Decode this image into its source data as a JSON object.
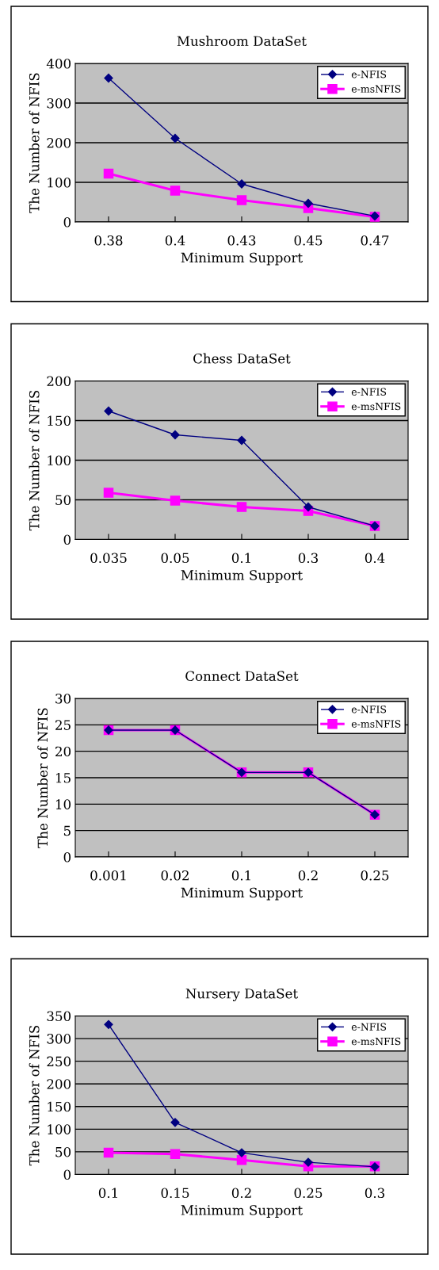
{
  "chart_data": [
    {
      "type": "line",
      "title": "Mushroom DataSet",
      "xlabel": "Minimum Support",
      "ylabel": "The Number of NFIS",
      "categories": [
        "0.38",
        "0.4",
        "0.43",
        "0.45",
        "0.47"
      ],
      "ylim": [
        0,
        400
      ],
      "yticks": [
        0,
        100,
        200,
        300,
        400
      ],
      "grid": "y",
      "legend": "top right",
      "series": [
        {
          "name": "e-NFIS",
          "color": "#000080",
          "marker": "diamond",
          "values": [
            363,
            211,
            96,
            47,
            15
          ]
        },
        {
          "name": "e-msNFIS",
          "color": "#ff00ff",
          "marker": "square",
          "values": [
            122,
            79,
            55,
            35,
            13
          ]
        }
      ]
    },
    {
      "type": "line",
      "title": "Chess DataSet",
      "xlabel": "Minimum Support",
      "ylabel": "The Number of NFIS",
      "categories": [
        "0.035",
        "0.05",
        "0.1",
        "0.3",
        "0.4"
      ],
      "ylim": [
        0,
        200
      ],
      "yticks": [
        0,
        50,
        100,
        150,
        200
      ],
      "grid": "y",
      "legend": "top right",
      "series": [
        {
          "name": "e-NFIS",
          "color": "#000080",
          "marker": "diamond",
          "values": [
            162,
            132,
            125,
            41,
            17
          ]
        },
        {
          "name": "e-msNFIS",
          "color": "#ff00ff",
          "marker": "square",
          "values": [
            59,
            49,
            41,
            36,
            17
          ]
        }
      ]
    },
    {
      "type": "line",
      "title": "Connect DataSet",
      "xlabel": "Minimum Support",
      "ylabel": "The Number of NFIS",
      "categories": [
        "0.001",
        "0.02",
        "0.1",
        "0.2",
        "0.25"
      ],
      "ylim": [
        0,
        30
      ],
      "yticks": [
        0,
        5,
        10,
        15,
        20,
        25,
        30
      ],
      "grid": "y",
      "legend": "top right",
      "series": [
        {
          "name": "e-NFIS",
          "color": "#000080",
          "marker": "diamond",
          "values": [
            24,
            24,
            16,
            16,
            8
          ]
        },
        {
          "name": "e-msNFIS",
          "color": "#ff00ff",
          "marker": "square",
          "values": [
            24,
            24,
            16,
            16,
            8
          ]
        }
      ]
    },
    {
      "type": "line",
      "title": "Nursery DataSet",
      "xlabel": "Minimum Support",
      "ylabel": "The Number of NFIS",
      "categories": [
        "0.1",
        "0.15",
        "0.2",
        "0.25",
        "0.3"
      ],
      "ylim": [
        0,
        350
      ],
      "yticks": [
        0,
        50,
        100,
        150,
        200,
        250,
        300,
        350
      ],
      "grid": "y",
      "legend": "top right",
      "series": [
        {
          "name": "e-NFIS",
          "color": "#000080",
          "marker": "diamond",
          "values": [
            331,
            115,
            48,
            27,
            17
          ]
        },
        {
          "name": "e-msNFIS",
          "color": "#ff00ff",
          "marker": "square",
          "values": [
            48,
            45,
            32,
            18,
            18
          ]
        }
      ]
    }
  ]
}
